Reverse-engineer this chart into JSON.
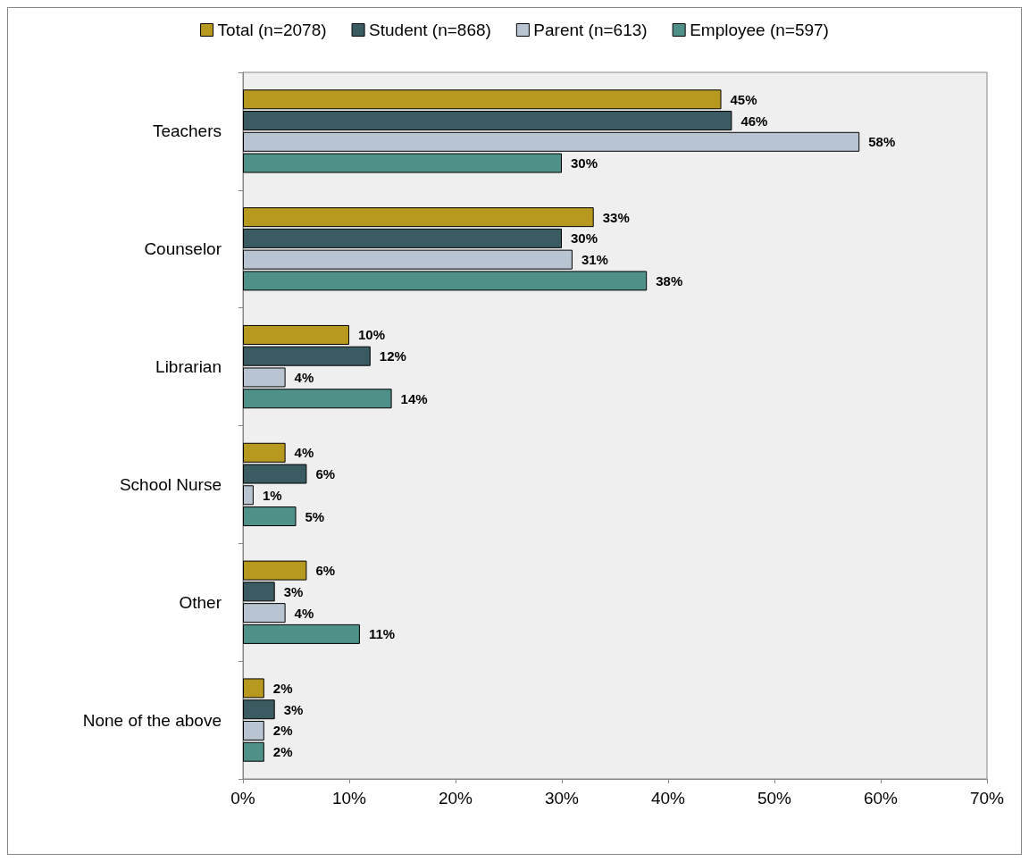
{
  "chart_data": {
    "type": "bar",
    "orientation": "horizontal",
    "categories": [
      "Teachers",
      "Counselor",
      "Librarian",
      "School Nurse",
      "Other",
      "None of the above"
    ],
    "series": [
      {
        "name": "Total (n=2078)",
        "color": "#b8991f",
        "values": [
          45,
          33,
          10,
          4,
          6,
          2
        ],
        "value_labels": [
          "45%",
          "33%",
          "10%",
          "4%",
          "6%",
          "2%"
        ]
      },
      {
        "name": "Student (n=868)",
        "color": "#3b5b63",
        "values": [
          46,
          30,
          12,
          6,
          3,
          3
        ],
        "value_labels": [
          "46%",
          "30%",
          "12%",
          "6%",
          "3%",
          "3%"
        ]
      },
      {
        "name": "Parent (n=613)",
        "color": "#b8c4d2",
        "values": [
          58,
          31,
          4,
          1,
          4,
          2
        ],
        "value_labels": [
          "58%",
          "31%",
          "4%",
          "1%",
          "4%",
          "2%"
        ]
      },
      {
        "name": "Employee (n=597)",
        "color": "#4f9189",
        "values": [
          30,
          38,
          14,
          5,
          11,
          2
        ],
        "value_labels": [
          "30%",
          "38%",
          "14%",
          "5%",
          "11%",
          "2%"
        ]
      }
    ],
    "xlim": [
      0,
      70
    ],
    "xticks": [
      {
        "value": 0,
        "label": "0%"
      },
      {
        "value": 10,
        "label": "10%"
      },
      {
        "value": 20,
        "label": "20%"
      },
      {
        "value": 30,
        "label": "30%"
      },
      {
        "value": 40,
        "label": "40%"
      },
      {
        "value": 50,
        "label": "50%"
      },
      {
        "value": 60,
        "label": "60%"
      },
      {
        "value": 70,
        "label": "70%"
      }
    ],
    "grid": false,
    "legend": "top"
  }
}
